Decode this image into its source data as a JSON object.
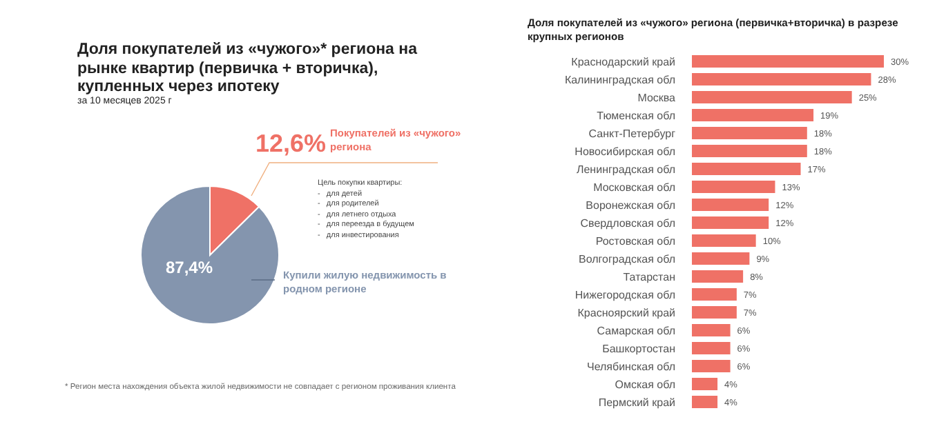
{
  "chart_data": [
    {
      "type": "pie",
      "title": "Доля покупателей из «чужого»* региона на рынке квартир (первичка + вторичка), купленных через ипотеку",
      "subtitle": "за 10 месяцев 2025 г",
      "categories": [
        "Покупателей из «чужого» региона",
        "Купили жилую недвижимость в родном регионе"
      ],
      "values": [
        12.6,
        87.4
      ],
      "value_labels": [
        "12,6%",
        "87,4%"
      ],
      "colors": [
        "#ef7166",
        "#8495ae"
      ],
      "annotations": [
        "Цель покупки квартиры:",
        "-   для детей",
        "-   для родителей",
        "-   для летнего отдыха",
        "-   для переезда в будущем",
        "-   для инвестирования",
        "* Регион места нахождения объекта жилой недвижимости не совпадает с регионом проживания клиента"
      ]
    },
    {
      "type": "bar",
      "orientation": "horizontal",
      "title": "Доля покупателей из «чужого» региона (первичка+вторичка) в разрезе крупных регионов",
      "tick_labels": "y",
      "color": "#ef7166",
      "grid": false,
      "categories": [
        "Краснодарский край",
        "Калининградская обл",
        "Москва",
        "Тюменская обл",
        "Санкт-Петербург",
        "Новосибирская обл",
        "Ленинградская обл",
        "Московская обл",
        "Воронежская обл",
        "Свердловская обл",
        "Ростовская обл",
        "Волгоградская обл",
        "Татарстан",
        "Нижегородская обл",
        "Красноярский край",
        "Самарская обл",
        "Башкортостан",
        "Челябинская обл",
        "Омская обл",
        "Пермский край"
      ],
      "values": [
        30,
        28,
        25,
        19,
        18,
        18,
        17,
        13,
        12,
        12,
        10,
        9,
        8,
        7,
        7,
        6,
        6,
        6,
        4,
        4
      ],
      "value_labels": [
        "30%",
        "28%",
        "25%",
        "19%",
        "18%",
        "18%",
        "17%",
        "13%",
        "12%",
        "12%",
        "10%",
        "9%",
        "8%",
        "7%",
        "7%",
        "6%",
        "6%",
        "6%",
        "4%",
        "4%"
      ]
    }
  ]
}
